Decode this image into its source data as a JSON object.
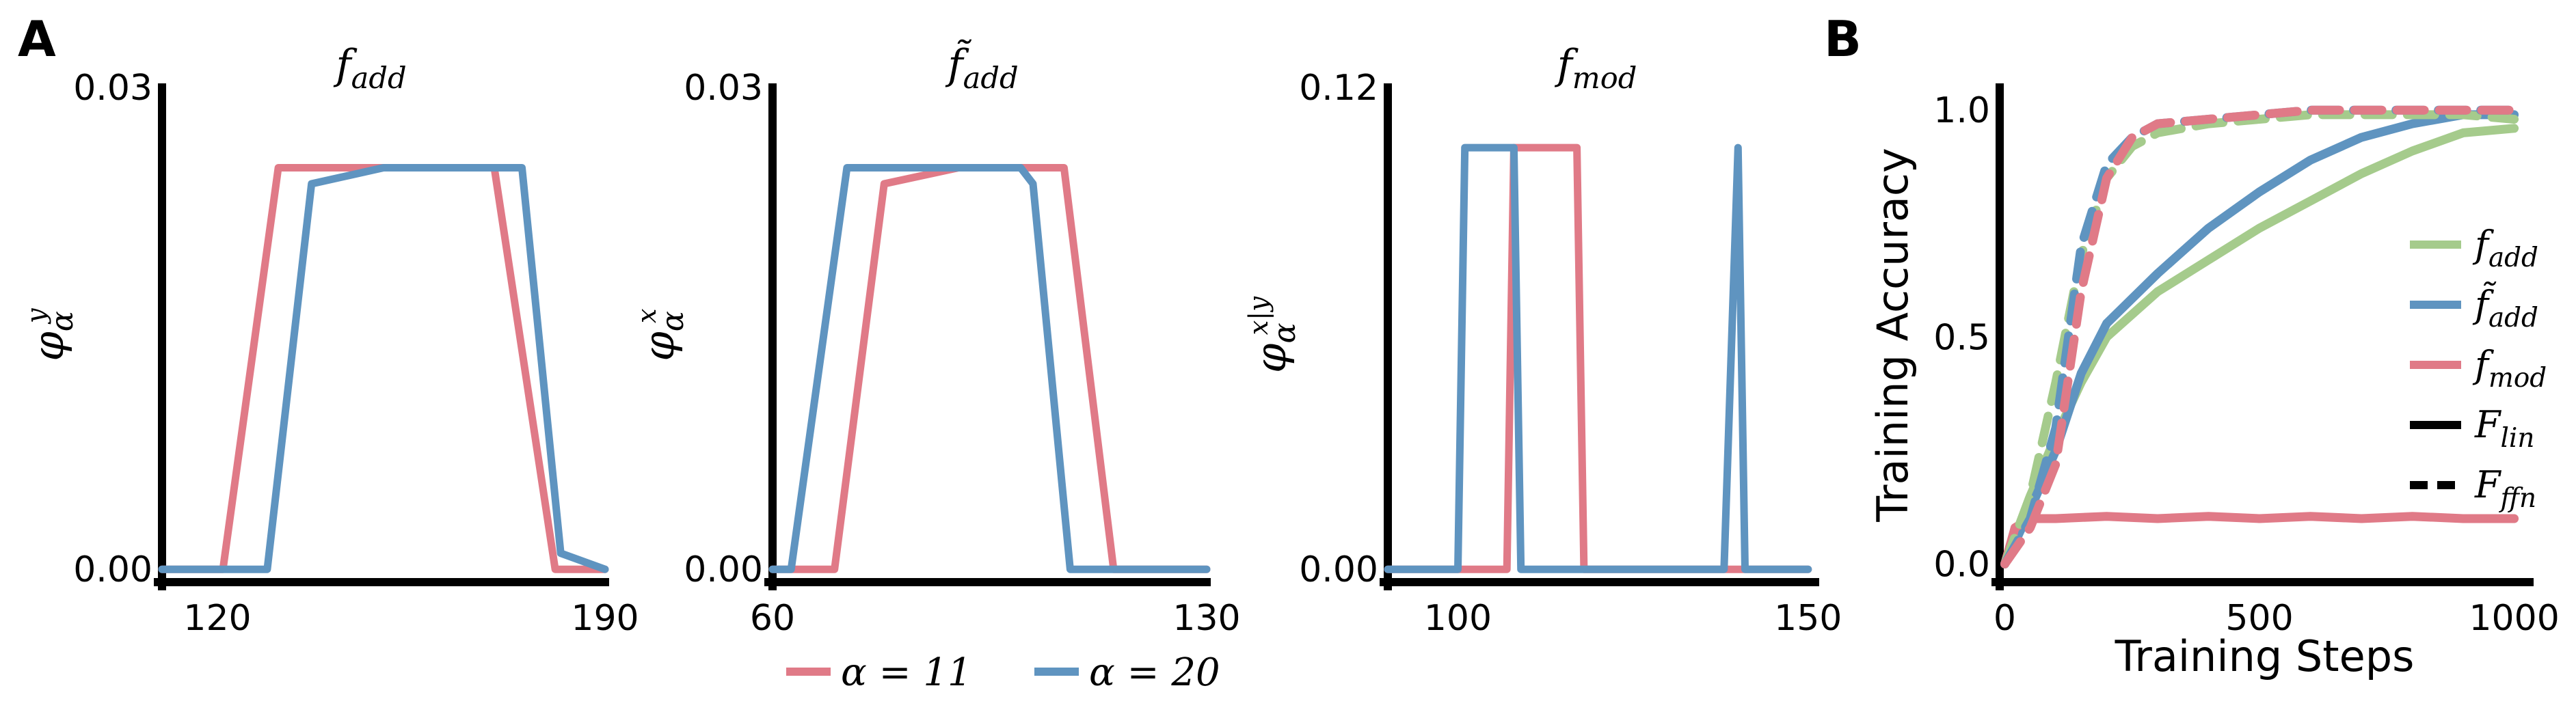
{
  "panel_labels": {
    "a": "A",
    "b": "B"
  },
  "colors": {
    "red": "#e07a87",
    "blue": "#5f94c0",
    "green": "#a5cb8c",
    "axis": "#000000"
  },
  "bottom_legend": [
    {
      "label": "α = 11",
      "color": "#e07a87"
    },
    {
      "label": "α = 20",
      "color": "#5f94c0"
    }
  ],
  "chart_data": [
    {
      "type": "line",
      "title": "f_add",
      "ylabel": "φ_α^y",
      "xlim": [
        110,
        190
      ],
      "ylim": [
        -0.0008,
        0.03
      ],
      "xticks": [
        {
          "v": 120,
          "label": "120"
        },
        {
          "v": 190,
          "label": "190"
        }
      ],
      "yticks": [
        {
          "v": 0,
          "label": "0.00"
        },
        {
          "v": 0.03,
          "label": "0.03"
        }
      ],
      "series": [
        {
          "name": "α = 11",
          "color": "#e07a87",
          "x": [
            110,
            121,
            131,
            150,
            160,
            170,
            181,
            190
          ],
          "y": [
            0,
            0,
            0.025,
            0.025,
            0.025,
            0.025,
            0,
            0
          ]
        },
        {
          "name": "α = 20",
          "color": "#5f94c0",
          "x": [
            110,
            129,
            137,
            150,
            160,
            175,
            182,
            190
          ],
          "y": [
            0,
            0,
            0.024,
            0.025,
            0.025,
            0.025,
            0.001,
            0
          ]
        }
      ]
    },
    {
      "type": "line",
      "title": "f̃_add",
      "ylabel": "φ_α^x",
      "xlim": [
        60,
        130
      ],
      "ylim": [
        -0.0008,
        0.03
      ],
      "xticks": [
        {
          "v": 60,
          "label": "60"
        },
        {
          "v": 130,
          "label": "130"
        }
      ],
      "yticks": [
        {
          "v": 0,
          "label": "0.00"
        },
        {
          "v": 0.03,
          "label": "0.03"
        }
      ],
      "series": [
        {
          "name": "α = 11",
          "color": "#e07a87",
          "x": [
            60,
            70,
            78,
            90,
            100,
            107,
            115,
            130
          ],
          "y": [
            0,
            0,
            0.024,
            0.025,
            0.025,
            0.025,
            0,
            0
          ]
        },
        {
          "name": "α = 20",
          "color": "#5f94c0",
          "x": [
            60,
            63,
            72,
            90,
            100,
            102,
            108,
            130
          ],
          "y": [
            0,
            0,
            0.025,
            0.025,
            0.025,
            0.024,
            0,
            0
          ]
        }
      ]
    },
    {
      "type": "line",
      "title": "f_mod",
      "ylabel": "φ_α^(x|y)",
      "xlim": [
        90,
        151
      ],
      "ylim": [
        -0.0032,
        0.12
      ],
      "xticks": [
        {
          "v": 100,
          "label": "100"
        },
        {
          "v": 150,
          "label": "150"
        }
      ],
      "yticks": [
        {
          "v": 0,
          "label": "0.00"
        },
        {
          "v": 0.12,
          "label": "0.12"
        }
      ],
      "series": [
        {
          "name": "α = 11",
          "color": "#e07a87",
          "x": [
            90,
            107,
            108,
            117,
            118,
            150
          ],
          "y": [
            0,
            0,
            0.105,
            0.105,
            0,
            0
          ]
        },
        {
          "name": "α = 20",
          "color": "#5f94c0",
          "x": [
            90,
            100,
            101,
            108,
            109,
            138,
            140,
            141,
            150
          ],
          "y": [
            0,
            0,
            0.105,
            0.105,
            0,
            0,
            0.105,
            0,
            0
          ]
        }
      ]
    },
    {
      "type": "line",
      "xlabel": "Training Steps",
      "ylabel": "Training Accuracy",
      "xlim": [
        -10,
        1030
      ],
      "ylim": [
        -0.04,
        1.05
      ],
      "xticks": [
        {
          "v": 0,
          "label": "0"
        },
        {
          "v": 500,
          "label": "500"
        },
        {
          "v": 1000,
          "label": "1000"
        }
      ],
      "yticks": [
        {
          "v": 0,
          "label": "0.0"
        },
        {
          "v": 0.5,
          "label": "0.5"
        },
        {
          "v": 1,
          "label": "1.0"
        }
      ],
      "legend_position": "right",
      "legend": [
        {
          "label": "f_add",
          "color": "#a5cb8c",
          "style": "solid"
        },
        {
          "label": "f̃_add",
          "color": "#5f94c0",
          "style": "solid"
        },
        {
          "label": "f_mod",
          "color": "#e07a87",
          "style": "solid"
        },
        {
          "label": "F_lin",
          "color": "#000000",
          "style": "solid"
        },
        {
          "label": "F_ffn",
          "color": "#000000",
          "style": "dashed"
        }
      ],
      "series": [
        {
          "name": "f_add F_lin",
          "color": "#a5cb8c",
          "dashed": false,
          "x": [
            0,
            50,
            100,
            150,
            200,
            300,
            400,
            500,
            600,
            700,
            800,
            900,
            1000
          ],
          "y": [
            0,
            0.15,
            0.28,
            0.4,
            0.5,
            0.6,
            0.67,
            0.74,
            0.8,
            0.86,
            0.91,
            0.95,
            0.96
          ]
        },
        {
          "name": "f̃_add F_lin",
          "color": "#5f94c0",
          "dashed": false,
          "x": [
            0,
            50,
            100,
            150,
            200,
            300,
            400,
            500,
            600,
            700,
            800,
            900,
            1000
          ],
          "y": [
            0,
            0.12,
            0.25,
            0.42,
            0.53,
            0.64,
            0.74,
            0.82,
            0.89,
            0.94,
            0.97,
            0.99,
            0.99
          ]
        },
        {
          "name": "f_mod F_lin",
          "color": "#e07a87",
          "dashed": false,
          "x": [
            0,
            20,
            50,
            100,
            200,
            300,
            400,
            500,
            600,
            700,
            800,
            900,
            1000
          ],
          "y": [
            0,
            0.08,
            0.1,
            0.1,
            0.105,
            0.1,
            0.105,
            0.1,
            0.105,
            0.1,
            0.105,
            0.1,
            0.1
          ]
        },
        {
          "name": "f_add F_ffn",
          "color": "#a5cb8c",
          "dashed": true,
          "x": [
            0,
            50,
            100,
            150,
            200,
            250,
            300,
            400,
            500,
            600,
            700,
            800,
            900,
            1000
          ],
          "y": [
            0,
            0.15,
            0.4,
            0.68,
            0.85,
            0.92,
            0.95,
            0.97,
            0.98,
            0.99,
            0.99,
            0.99,
            0.99,
            0.98
          ]
        },
        {
          "name": "f̃_add F_ffn",
          "color": "#5f94c0",
          "dashed": true,
          "x": [
            0,
            50,
            100,
            150,
            200,
            250,
            300,
            400,
            500,
            600,
            700,
            800,
            900,
            1000
          ],
          "y": [
            0,
            0.1,
            0.3,
            0.7,
            0.88,
            0.94,
            0.97,
            0.98,
            0.99,
            1.0,
            1.0,
            1.0,
            1.0,
            1.0
          ]
        },
        {
          "name": "f_mod F_ffn",
          "color": "#e07a87",
          "dashed": true,
          "x": [
            0,
            50,
            100,
            150,
            200,
            250,
            300,
            400,
            500,
            600,
            700,
            800,
            900,
            1000
          ],
          "y": [
            0,
            0.08,
            0.22,
            0.6,
            0.85,
            0.94,
            0.97,
            0.98,
            0.99,
            1.0,
            1.0,
            1.0,
            1.0,
            1.0
          ]
        }
      ]
    }
  ]
}
